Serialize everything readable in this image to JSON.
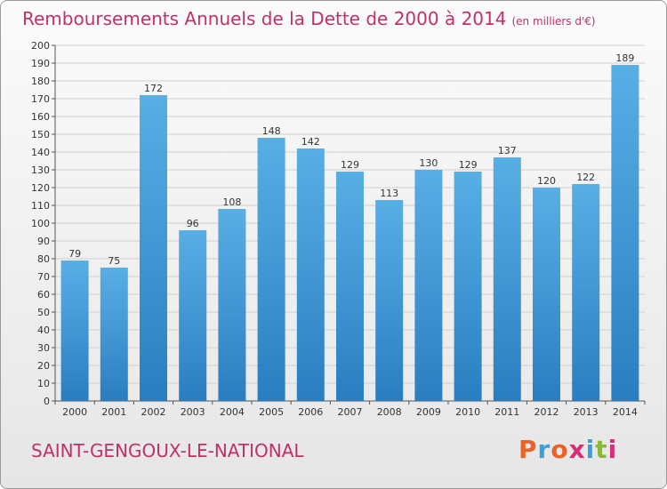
{
  "header": {
    "title": "Remboursements Annuels de la Dette de 2000 à 2014",
    "unit": "(en milliers d'€)"
  },
  "footer": {
    "commune": "SAINT-GENGOUX-LE-NATIONAL",
    "logo_text": "Proxiti",
    "logo_colors": [
      "#e8622a",
      "#3aa0d8",
      "#e8622a",
      "#d62f7a",
      "#3aa0d8",
      "#8ab83a",
      "#d62f7a"
    ]
  },
  "chart_data": {
    "type": "bar",
    "title": "Remboursements Annuels de la Dette de 2000 à 2014",
    "xlabel": "",
    "ylabel": "",
    "ylim": [
      0,
      200
    ],
    "ytick_step": 10,
    "grid": true,
    "categories": [
      "2000",
      "2001",
      "2002",
      "2003",
      "2004",
      "2005",
      "2006",
      "2007",
      "2008",
      "2009",
      "2010",
      "2011",
      "2012",
      "2013",
      "2014"
    ],
    "values": [
      79,
      75,
      172,
      96,
      108,
      148,
      142,
      129,
      113,
      130,
      129,
      137,
      120,
      122,
      189
    ],
    "colors": {
      "bar_light": "#5aaee6",
      "bar_dark": "#2a7ec0",
      "grid": "#cfcfcf",
      "axis": "#555555"
    }
  }
}
